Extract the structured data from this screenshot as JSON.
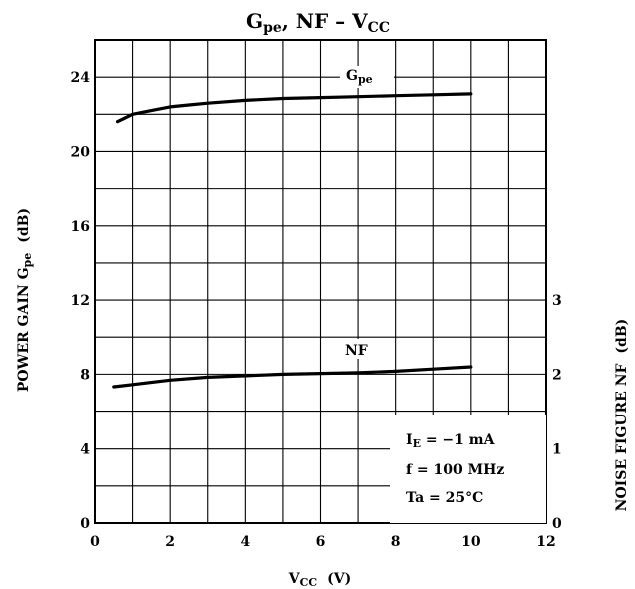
{
  "chart_data": {
    "type": "line",
    "title": "Gpe, NF – VCC",
    "title_parts": {
      "g": "G",
      "g_sub": "pe",
      "mid": ", NF  –  V",
      "v_sub": "CC"
    },
    "xlabel": {
      "main": "V",
      "sub": "CC",
      "unit": "(V)"
    },
    "ylabel_left": {
      "main": "POWER GAIN  G",
      "sub": "pe",
      "unit": "(dB)"
    },
    "ylabel_right": {
      "main": "NOISE FIGURE  NF",
      "unit": "(dB)"
    },
    "xlim": [
      0,
      12
    ],
    "ylim_left": [
      0,
      26
    ],
    "ylim_right": [
      0,
      3
    ],
    "x_ticks": [
      "0",
      "2",
      "4",
      "6",
      "8",
      "10",
      "12"
    ],
    "y_ticks_left": [
      "0",
      "4",
      "8",
      "12",
      "16",
      "20",
      "24"
    ],
    "y_ticks_right": [
      "0",
      "1",
      "2",
      "3"
    ],
    "grid": true,
    "series": [
      {
        "name": "Gpe",
        "axis": "left",
        "x": [
          0.6,
          0.8,
          1,
          1.5,
          2,
          2.5,
          3,
          4,
          5,
          6,
          7,
          8,
          9,
          10
        ],
        "y": [
          21.6,
          21.8,
          22.0,
          22.2,
          22.4,
          22.5,
          22.6,
          22.75,
          22.85,
          22.9,
          22.95,
          23.0,
          23.05,
          23.1
        ]
      },
      {
        "name": "NF",
        "axis": "right",
        "x": [
          0.5,
          1,
          2,
          3,
          4,
          5,
          6,
          7,
          8,
          9,
          10
        ],
        "y": [
          1.83,
          1.86,
          1.92,
          1.96,
          1.98,
          2.0,
          2.01,
          2.02,
          2.04,
          2.07,
          2.1
        ]
      }
    ],
    "annotation": {
      "line1_main": "I",
      "line1_sub": "E",
      "line1_rest": " = −1 mA",
      "line2": "f = 100 MHz",
      "line3": "Ta = 25°C"
    }
  }
}
